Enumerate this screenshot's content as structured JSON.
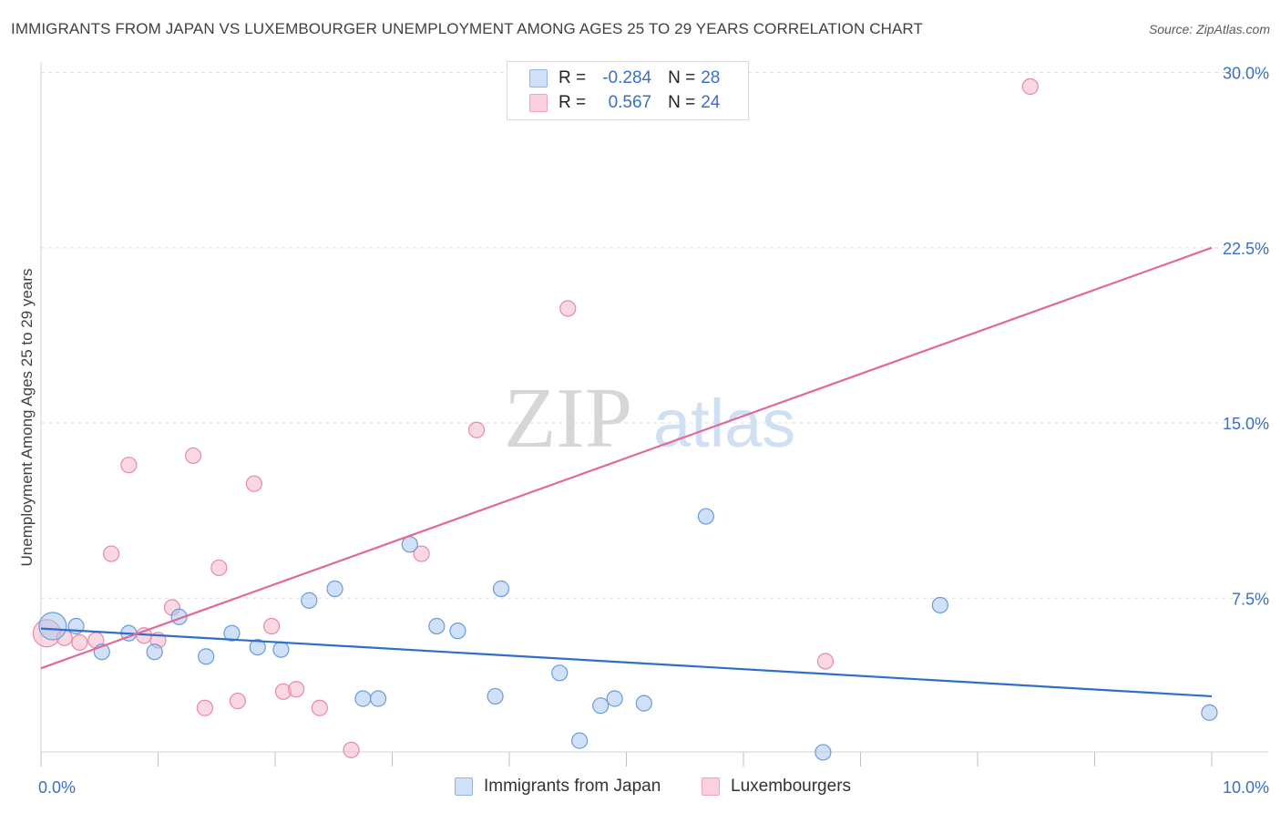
{
  "header": {
    "title": "IMMIGRANTS FROM JAPAN VS LUXEMBOURGER UNEMPLOYMENT AMONG AGES 25 TO 29 YEARS CORRELATION CHART",
    "source": "Source: ZipAtlas.com"
  },
  "watermark": {
    "zip": "ZIP",
    "atlas": "atlas"
  },
  "legend": {
    "rows": [
      {
        "r_label": "R =",
        "r_value": "-0.284",
        "n_label": "N =",
        "n_value": "28",
        "color": "#a9c8f0"
      },
      {
        "r_label": "R =",
        "r_value": "0.567",
        "n_label": "N =",
        "n_value": "24",
        "color": "#f5b8cb"
      }
    ]
  },
  "bottom_legend": {
    "series1": "Immigrants from Japan",
    "series2": "Luxembourgers"
  },
  "colors": {
    "blue_fill": "#a9c8f0",
    "blue_stroke": "#6b9bd8",
    "blue_line": "#2f6fc9",
    "pink_fill": "#f5b8cb",
    "pink_stroke": "#e889a9",
    "pink_line": "#e2679a",
    "axis_text": "#3a6fc4",
    "grid": "#dddddd"
  },
  "chart_data": {
    "type": "scatter",
    "title": "IMMIGRANTS FROM JAPAN VS LUXEMBOURGER UNEMPLOYMENT AMONG AGES 25 TO 29 YEARS CORRELATION CHART",
    "xlabel": "",
    "ylabel": "Unemployment Among Ages 25 to 29 years",
    "xlim": [
      0,
      10
    ],
    "ylim": [
      0,
      31
    ],
    "x_tick_labels": [
      "0.0%",
      "10.0%"
    ],
    "y_ticks": [
      7.5,
      15.0,
      22.5,
      30.0
    ],
    "y_tick_labels": [
      "7.5%",
      "15.0%",
      "22.5%",
      "30.0%"
    ],
    "grid": true,
    "legend_position": "top-center",
    "series": [
      {
        "name": "Immigrants from Japan",
        "r": -0.284,
        "n": 28,
        "trend": {
          "x": [
            0,
            10
          ],
          "y": [
            6.2,
            3.3
          ]
        },
        "points": [
          {
            "x": 0.1,
            "y": 6.3,
            "big": true
          },
          {
            "x": 0.3,
            "y": 6.3
          },
          {
            "x": 0.52,
            "y": 5.2
          },
          {
            "x": 0.75,
            "y": 6.0
          },
          {
            "x": 0.97,
            "y": 5.2
          },
          {
            "x": 1.18,
            "y": 6.7
          },
          {
            "x": 1.41,
            "y": 5.0
          },
          {
            "x": 1.63,
            "y": 6.0
          },
          {
            "x": 1.85,
            "y": 5.4
          },
          {
            "x": 2.05,
            "y": 5.3
          },
          {
            "x": 2.29,
            "y": 7.4
          },
          {
            "x": 2.51,
            "y": 7.9
          },
          {
            "x": 2.75,
            "y": 3.2
          },
          {
            "x": 2.88,
            "y": 3.2
          },
          {
            "x": 3.15,
            "y": 9.8
          },
          {
            "x": 3.38,
            "y": 6.3
          },
          {
            "x": 3.56,
            "y": 6.1
          },
          {
            "x": 3.88,
            "y": 3.3
          },
          {
            "x": 3.93,
            "y": 7.9
          },
          {
            "x": 4.43,
            "y": 4.3
          },
          {
            "x": 4.6,
            "y": 1.4
          },
          {
            "x": 4.78,
            "y": 2.9
          },
          {
            "x": 4.9,
            "y": 3.2
          },
          {
            "x": 5.15,
            "y": 3.0
          },
          {
            "x": 5.68,
            "y": 11.0
          },
          {
            "x": 6.68,
            "y": 0.9
          },
          {
            "x": 7.68,
            "y": 7.2
          },
          {
            "x": 9.98,
            "y": 2.6
          }
        ]
      },
      {
        "name": "Luxembourgers",
        "r": 0.567,
        "n": 24,
        "trend": {
          "x": [
            0,
            10
          ],
          "y": [
            4.5,
            22.5
          ]
        },
        "points": [
          {
            "x": 0.05,
            "y": 6.0,
            "big": true
          },
          {
            "x": 0.2,
            "y": 5.8
          },
          {
            "x": 0.33,
            "y": 5.6
          },
          {
            "x": 0.47,
            "y": 5.7
          },
          {
            "x": 0.6,
            "y": 9.4
          },
          {
            "x": 0.75,
            "y": 13.2
          },
          {
            "x": 0.88,
            "y": 5.9
          },
          {
            "x": 1.0,
            "y": 5.7
          },
          {
            "x": 1.12,
            "y": 7.1
          },
          {
            "x": 1.3,
            "y": 13.6
          },
          {
            "x": 1.4,
            "y": 2.8
          },
          {
            "x": 1.52,
            "y": 8.8
          },
          {
            "x": 1.68,
            "y": 3.1
          },
          {
            "x": 1.82,
            "y": 12.4
          },
          {
            "x": 1.97,
            "y": 6.3
          },
          {
            "x": 2.07,
            "y": 3.5
          },
          {
            "x": 2.18,
            "y": 3.6
          },
          {
            "x": 2.38,
            "y": 2.8
          },
          {
            "x": 2.65,
            "y": 1.0
          },
          {
            "x": 3.25,
            "y": 9.4
          },
          {
            "x": 3.72,
            "y": 14.7
          },
          {
            "x": 4.5,
            "y": 19.9
          },
          {
            "x": 6.7,
            "y": 4.8
          },
          {
            "x": 8.45,
            "y": 29.4
          }
        ]
      }
    ]
  }
}
